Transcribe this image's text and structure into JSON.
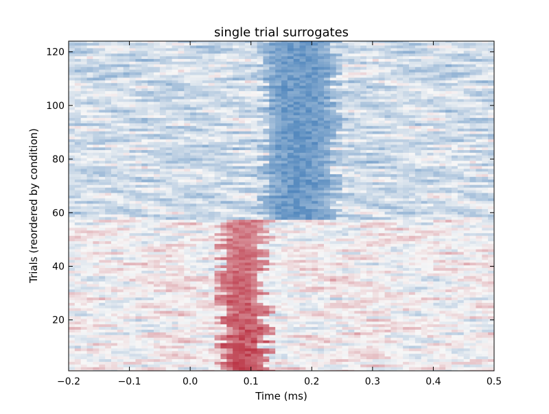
{
  "chart_data": {
    "type": "heatmap",
    "title": "single trial surrogates",
    "xlabel": "Time (ms)",
    "ylabel": "Trials (reordered by condition)",
    "xlim": [
      -0.2,
      0.5
    ],
    "ylim": [
      1,
      124
    ],
    "x_ticks": [
      -0.2,
      -0.1,
      0.0,
      0.1,
      0.2,
      0.3,
      0.4,
      0.5
    ],
    "x_tick_labels": [
      "−0.2",
      "−0.1",
      "0.0",
      "0.1",
      "0.2",
      "0.3",
      "0.4",
      "0.5"
    ],
    "y_ticks": [
      20,
      40,
      60,
      80,
      100,
      120
    ],
    "y_tick_labels": [
      "20",
      "40",
      "60",
      "80",
      "100",
      "120"
    ],
    "colormap": "RdBu_r",
    "grid": false,
    "colors": {
      "red": "#b2182b",
      "white": "#f7f7f7",
      "blue": "#2166ac"
    },
    "n_trials": 124,
    "regions": [
      {
        "condition": "trials 1-57",
        "x_range": [
          0.05,
          0.125
        ],
        "sign": "positive",
        "intensity": 0.85
      },
      {
        "condition": "trials 58-124",
        "x_range": [
          0.12,
          0.24
        ],
        "sign": "negative",
        "intensity": 0.7
      }
    ]
  }
}
